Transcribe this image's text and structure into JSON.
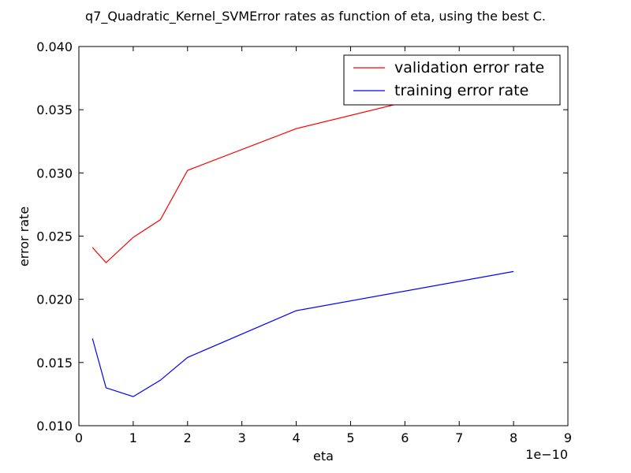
{
  "chart_data": {
    "type": "line",
    "title": "q7_Quadratic_Kernel_SVMError rates as function of eta, using the best C.",
    "xlabel": "eta",
    "ylabel": "error rate",
    "x_offset_label": "1e−10",
    "xlim": [
      0,
      9
    ],
    "ylim": [
      0.01,
      0.04
    ],
    "xticks": [
      0,
      1,
      2,
      3,
      4,
      5,
      6,
      7,
      8,
      9
    ],
    "xtick_labels": [
      "0",
      "1",
      "2",
      "3",
      "4",
      "5",
      "6",
      "7",
      "8",
      "9"
    ],
    "yticks": [
      0.01,
      0.015,
      0.02,
      0.025,
      0.03,
      0.035,
      0.04
    ],
    "ytick_labels": [
      "0.010",
      "0.015",
      "0.020",
      "0.025",
      "0.030",
      "0.035",
      "0.040"
    ],
    "grid": false,
    "legend_position": "top-right",
    "series": [
      {
        "name": "validation error rate",
        "color": "#ff0000",
        "x": [
          0.25,
          0.5,
          1,
          1.5,
          2,
          4,
          8
        ],
        "y": [
          0.0241,
          0.0229,
          0.0249,
          0.0263,
          0.0302,
          0.0335,
          0.0377
        ]
      },
      {
        "name": "training error rate",
        "color": "#0000ff",
        "x": [
          0.25,
          0.5,
          1,
          1.5,
          2,
          4,
          8
        ],
        "y": [
          0.0169,
          0.013,
          0.0123,
          0.0136,
          0.0154,
          0.0191,
          0.0222
        ]
      }
    ]
  }
}
